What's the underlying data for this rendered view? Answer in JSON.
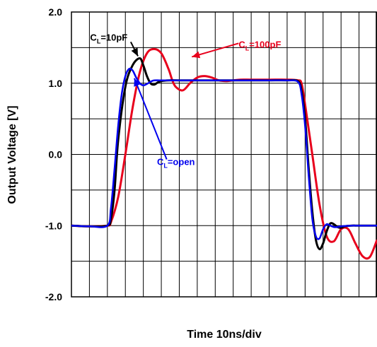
{
  "chart_data": {
    "type": "line",
    "title": "",
    "xlabel": "Time 10ns/div",
    "ylabel": "Output Voltage [V]",
    "xlim": [
      0,
      85
    ],
    "ylim": [
      -2.0,
      2.0
    ],
    "x_tick_step": 5,
    "y_tick_step": 0.5,
    "y_tick_labels": [
      {
        "value": 2.0,
        "label": "2.0"
      },
      {
        "value": 1.0,
        "label": "1.0"
      },
      {
        "value": 0.0,
        "label": "0.0"
      },
      {
        "value": -1.0,
        "label": "-1.0"
      },
      {
        "value": -2.0,
        "label": "-2.0"
      }
    ],
    "grid": true,
    "series": [
      {
        "name": "CL=100pF",
        "color": "#e8001c",
        "x": [
          0,
          5,
          10,
          11,
          13,
          15,
          17,
          19,
          21,
          23,
          25,
          27,
          28,
          29,
          31,
          33,
          35,
          37,
          39,
          41,
          43,
          45,
          47,
          50,
          55,
          60,
          63,
          64,
          65,
          67,
          69,
          71,
          73,
          75,
          77,
          79,
          81,
          83,
          85
        ],
        "y": [
          -1.0,
          -1.01,
          -1.0,
          -0.95,
          -0.6,
          0.0,
          0.65,
          1.15,
          1.42,
          1.48,
          1.42,
          1.2,
          1.05,
          0.95,
          0.9,
          1.0,
          1.08,
          1.1,
          1.08,
          1.04,
          1.03,
          1.04,
          1.05,
          1.05,
          1.05,
          1.05,
          1.04,
          1.0,
          0.7,
          0.0,
          -0.7,
          -1.15,
          -1.22,
          -1.05,
          -1.05,
          -1.25,
          -1.43,
          -1.44,
          -1.2
        ]
      },
      {
        "name": "CL=10pF",
        "color": "#000000",
        "x": [
          0,
          5,
          10,
          11,
          12,
          13,
          15,
          17,
          19,
          20,
          21,
          22,
          23,
          24,
          25,
          27,
          30,
          35,
          40,
          45,
          50,
          55,
          60,
          63,
          64,
          65,
          66,
          67,
          68,
          69,
          70,
          71,
          72,
          73,
          74,
          75,
          76,
          78,
          80,
          85
        ],
        "y": [
          -1.0,
          -1.01,
          -1.0,
          -0.9,
          -0.5,
          0.2,
          0.95,
          1.25,
          1.35,
          1.25,
          1.1,
          1.0,
          0.98,
          1.01,
          1.03,
          1.04,
          1.04,
          1.04,
          1.04,
          1.04,
          1.04,
          1.04,
          1.04,
          1.03,
          0.9,
          0.5,
          -0.2,
          -0.8,
          -1.2,
          -1.33,
          -1.25,
          -1.08,
          -0.97,
          -0.98,
          -1.02,
          -1.03,
          -1.01,
          -1.0,
          -1.0,
          -1.0
        ]
      },
      {
        "name": "CL=open",
        "color": "#0000ee",
        "x": [
          0,
          5,
          10,
          11,
          12,
          13,
          14,
          15,
          16,
          17,
          18,
          19,
          20,
          21,
          22,
          23,
          25,
          30,
          35,
          40,
          45,
          50,
          55,
          60,
          63,
          64,
          65,
          66,
          67,
          68,
          69,
          70,
          71,
          72,
          73,
          74,
          75,
          78,
          80,
          85
        ],
        "y": [
          -1.0,
          -1.01,
          -1.0,
          -0.75,
          -0.2,
          0.4,
          0.85,
          1.1,
          1.2,
          1.18,
          1.08,
          1.0,
          0.97,
          0.99,
          1.02,
          1.04,
          1.04,
          1.04,
          1.04,
          1.04,
          1.04,
          1.04,
          1.04,
          1.04,
          1.02,
          0.85,
          0.4,
          -0.3,
          -0.9,
          -1.15,
          -1.18,
          -1.05,
          -0.98,
          -1.0,
          -1.02,
          -1.02,
          -1.01,
          -1.0,
          -1.0,
          -1.0
        ]
      }
    ],
    "annotations": [
      {
        "text_main": "C",
        "text_sub": "L",
        "text_rest": "=10pF",
        "color": "#000000",
        "series": "CL=10pF",
        "label_x": 5.2,
        "label_y": 1.65,
        "arrow_from": [
          16.5,
          1.58
        ],
        "arrow_to": [
          18.5,
          1.38
        ]
      },
      {
        "text_main": "C",
        "text_sub": "L",
        "text_rest": "=100pF",
        "color": "#e8001c",
        "series": "CL=100pF",
        "label_x": 46.5,
        "label_y": 1.55,
        "arrow_from": [
          46.5,
          1.56
        ],
        "arrow_to": [
          33.5,
          1.37
        ]
      },
      {
        "text_main": "C",
        "text_sub": "L",
        "text_rest": "=open",
        "color": "#0000ee",
        "series": "CL=open",
        "label_x": 23.8,
        "label_y": -0.1,
        "arrow_from": [
          26.5,
          -0.07
        ],
        "arrow_to": [
          17.5,
          1.07
        ]
      }
    ]
  }
}
